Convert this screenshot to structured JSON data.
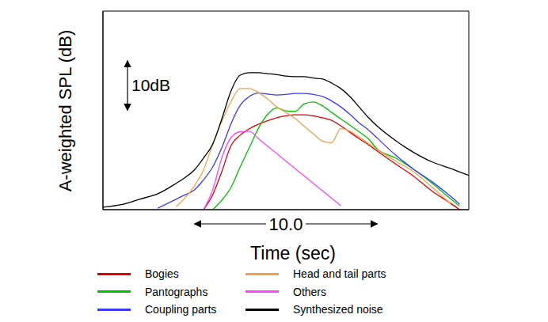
{
  "chart_data": {
    "type": "line",
    "x_label": "Time (sec)",
    "y_label": "A-weighted SPL (dB)",
    "xlim": [
      0,
      20
    ],
    "xticks": [
      0,
      5,
      10,
      15,
      20
    ],
    "ylim": [
      0,
      40
    ],
    "yticks": [
      0,
      10,
      20,
      30,
      40
    ],
    "grid": true,
    "tick_labels": false,
    "annotations": [
      {
        "text": "10dB",
        "y": [
          20,
          30
        ]
      },
      {
        "text": "10.0",
        "x": [
          5,
          15
        ]
      }
    ],
    "x": [
      0,
      1,
      2,
      3,
      4,
      4.5,
      5,
      5.5,
      6,
      6.5,
      7,
      7.5,
      8,
      8.5,
      9,
      9.5,
      10,
      10.5,
      11,
      11.5,
      12,
      12.5,
      13,
      13.5,
      14,
      14.5,
      15,
      16,
      17,
      18,
      19,
      19.5,
      20
    ],
    "series": [
      {
        "name": "Bogies",
        "color": "#e00000",
        "values": [
          null,
          null,
          null,
          null,
          null,
          null,
          null,
          0,
          3.0,
          7.7,
          12.9,
          15.0,
          16.3,
          17.2,
          17.9,
          18.5,
          18.9,
          19.1,
          19.1,
          18.9,
          18.5,
          18.0,
          16.9,
          15.6,
          14.3,
          13.1,
          11.8,
          9.2,
          6.7,
          3.7,
          1.3,
          0,
          null
        ]
      },
      {
        "name": "Pantographs",
        "color": "#00c000",
        "values": [
          null,
          null,
          null,
          null,
          null,
          null,
          null,
          null,
          0,
          1.9,
          4.5,
          8.6,
          12.5,
          16.4,
          19.2,
          20.5,
          19.9,
          19.8,
          21.3,
          21.7,
          20.9,
          19.6,
          18.3,
          17.0,
          15.7,
          14.3,
          12.2,
          10.4,
          8.1,
          5.3,
          2.2,
          0.7,
          null
        ]
      },
      {
        "name": "Coupling parts",
        "color": "#3a3aff",
        "values": [
          null,
          null,
          null,
          0.3,
          2.1,
          3.0,
          4.0,
          6.0,
          8.6,
          12.5,
          17.3,
          21.0,
          22.8,
          23.5,
          23.3,
          23.1,
          23.2,
          23.4,
          23.4,
          23.2,
          22.8,
          21.9,
          20.7,
          19.2,
          17.5,
          16.1,
          14.4,
          11.0,
          8.1,
          5.6,
          2.7,
          1.1,
          null
        ]
      },
      {
        "name": "Head and tail parts",
        "color": "#f0a050",
        "values": [
          null,
          null,
          null,
          null,
          0.6,
          2.4,
          4.8,
          8.0,
          13.2,
          17.8,
          21.8,
          24.4,
          24.4,
          23.6,
          22.3,
          20.7,
          19.6,
          18.4,
          16.8,
          15.3,
          13.8,
          13.5,
          16.3,
          15.8,
          14.6,
          13.4,
          12.1,
          9.8,
          7.6,
          4.5,
          1.2,
          null,
          null
        ]
      },
      {
        "name": "Others",
        "color": "#ff44ff",
        "values": [
          null,
          null,
          null,
          null,
          null,
          null,
          null,
          0,
          4.0,
          10.5,
          14.5,
          15.7,
          15.8,
          14.3,
          12.8,
          11.3,
          9.8,
          8.3,
          6.8,
          5.3,
          3.8,
          2.3,
          0.8,
          null,
          null,
          null,
          null,
          null,
          null,
          null,
          null,
          null,
          null
        ]
      },
      {
        "name": "Synthesized noise",
        "color": "#000000",
        "values": [
          0.5,
          1.0,
          2.1,
          3.2,
          5.3,
          6.5,
          8.0,
          10.4,
          13.2,
          18.3,
          23.9,
          27.1,
          27.6,
          27.6,
          27.4,
          27.2,
          26.9,
          26.8,
          26.8,
          26.5,
          26.3,
          25.5,
          24.4,
          22.8,
          20.7,
          18.6,
          16.8,
          13.9,
          11.5,
          9.6,
          8.3,
          7.6,
          6.9
        ]
      }
    ]
  }
}
